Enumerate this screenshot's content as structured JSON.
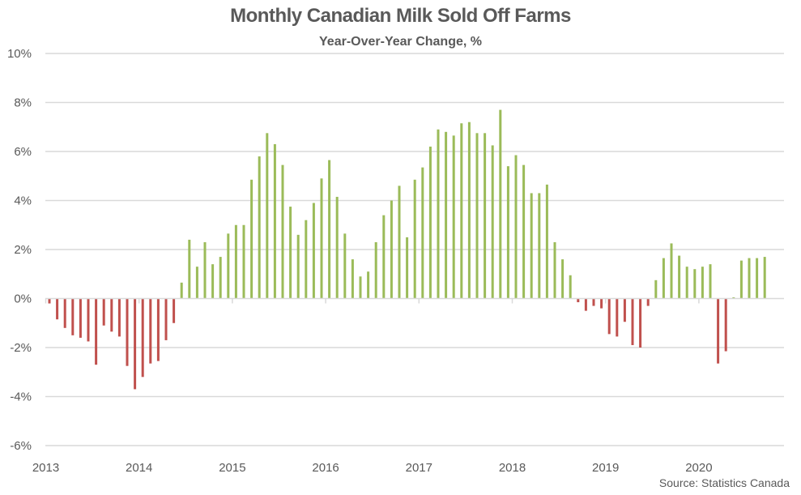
{
  "chart_data": {
    "type": "bar",
    "title": "Monthly Canadian Milk Sold Off Farms",
    "subtitle": "Year-Over-Year Change, %",
    "source": "Source: Statistics Canada",
    "xlabel": "",
    "ylabel": "",
    "ylim": [
      -6,
      10
    ],
    "yticks": [
      -6,
      -4,
      -2,
      0,
      2,
      4,
      6,
      8,
      10
    ],
    "ytick_labels": [
      "-6%",
      "-4%",
      "-2%",
      "0%",
      "2%",
      "4%",
      "6%",
      "8%",
      "10%"
    ],
    "x_year_labels": [
      "2013",
      "2014",
      "2015",
      "2016",
      "2017",
      "2018",
      "2019",
      "2020"
    ],
    "grid": true,
    "legend": "none",
    "colors": {
      "positive": "#9BBB59",
      "negative": "#C0504D",
      "grid": "#D9D9D9",
      "text": "#595959"
    },
    "start": "2013-01",
    "frequency": "monthly",
    "values": [
      -0.2,
      -0.85,
      -1.2,
      -1.5,
      -1.6,
      -1.75,
      -2.7,
      -1.1,
      -1.35,
      -1.55,
      -2.75,
      -3.7,
      -3.2,
      -2.65,
      -2.55,
      -1.7,
      -1.0,
      0.65,
      2.4,
      1.3,
      2.3,
      1.4,
      1.7,
      2.65,
      3.0,
      3.0,
      4.85,
      5.8,
      6.75,
      6.3,
      5.45,
      3.75,
      2.6,
      3.2,
      3.9,
      4.9,
      5.65,
      4.15,
      2.65,
      1.6,
      0.9,
      1.1,
      2.3,
      3.4,
      4.0,
      4.6,
      2.5,
      4.85,
      5.35,
      6.2,
      6.9,
      6.8,
      6.65,
      7.15,
      7.2,
      6.75,
      6.75,
      6.25,
      7.7,
      5.4,
      5.85,
      5.45,
      4.3,
      4.3,
      4.65,
      2.3,
      1.6,
      0.95,
      -0.15,
      -0.5,
      -0.3,
      -0.4,
      -1.45,
      -1.55,
      -0.95,
      -1.9,
      -2.0,
      -0.3,
      0.75,
      1.65,
      2.25,
      1.75,
      1.3,
      1.2,
      1.3,
      1.4,
      -2.65,
      -2.15,
      0.05,
      1.55,
      1.65,
      1.65,
      1.7
    ]
  }
}
